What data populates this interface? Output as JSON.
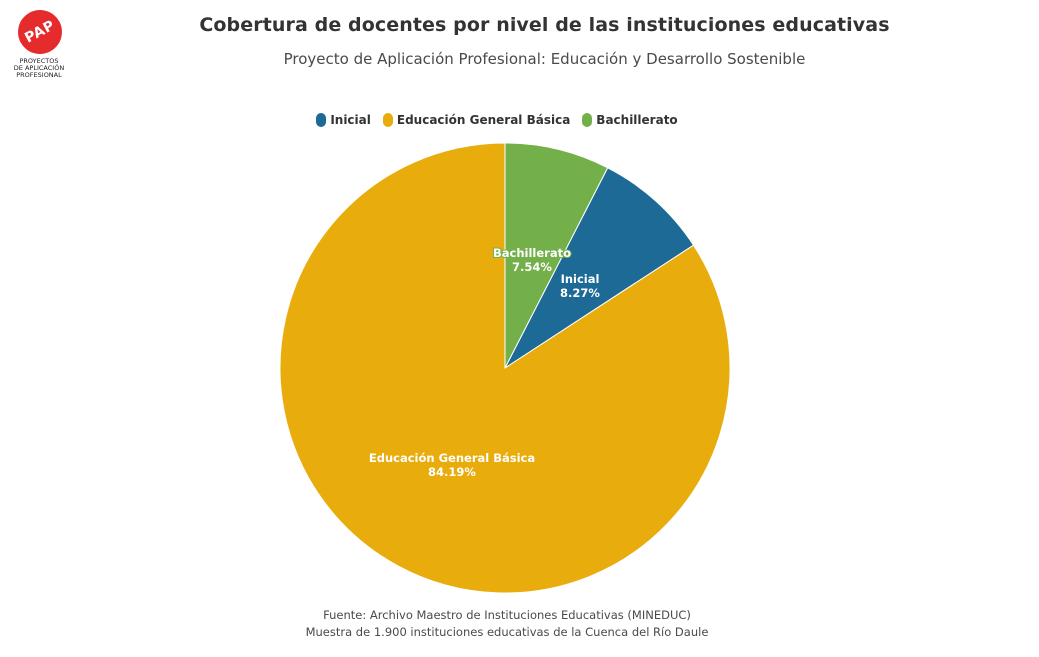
{
  "logo": {
    "mark": "PAP",
    "lines": [
      "PROYECTOS",
      "DE APLICACIÓN",
      "PROFESIONAL"
    ]
  },
  "chart_data": {
    "type": "pie",
    "title": "Cobertura de docentes por nivel de las instituciones educativas",
    "subtitle": "Proyecto de Aplicación Profesional: Educación y Desarrollo Sostenible",
    "legend_position": "top-center",
    "slices": [
      {
        "label": "Inicial",
        "value": 8.27,
        "value_label": "8.27%",
        "color": "#1d6a96"
      },
      {
        "label": "Educación General Básica",
        "value": 84.19,
        "value_label": "84.19%",
        "color": "#e8ac0c"
      },
      {
        "label": "Bachillerato",
        "value": 7.54,
        "value_label": "7.54%",
        "color": "#74b04a"
      }
    ],
    "source_lines": [
      "Fuente: Archivo Maestro de Instituciones Educativas (MINEDUC)",
      "Muestra de 1.900 instituciones educativas de la Cuenca del Río Daule"
    ]
  }
}
